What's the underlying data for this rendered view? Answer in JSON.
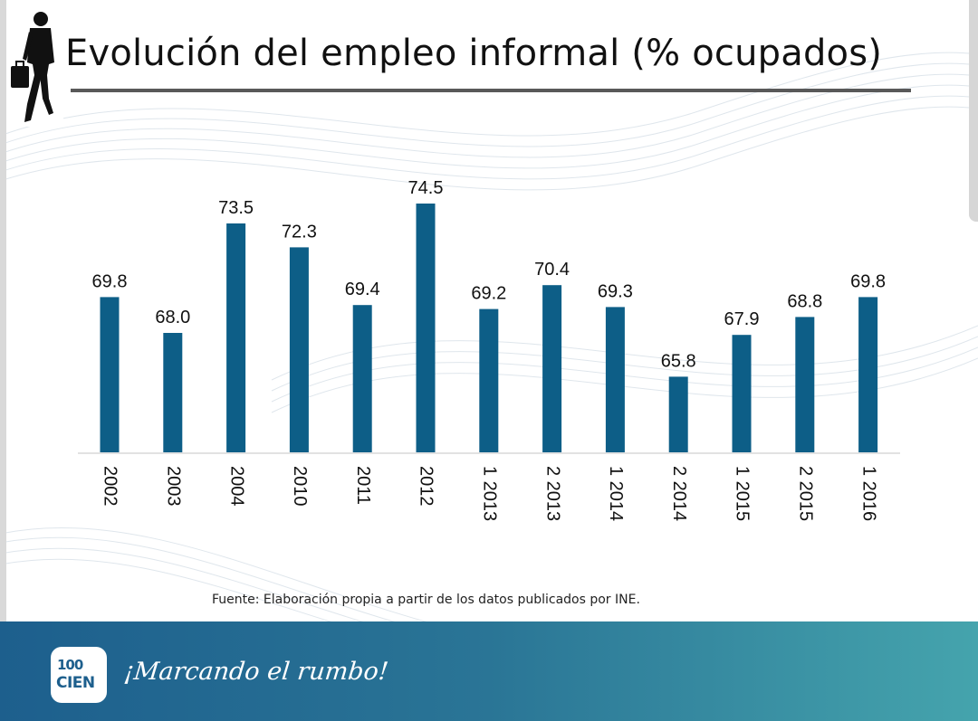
{
  "slide": {
    "title": "Evolución del empleo informal (% ocupados)",
    "source": "Fuente: Elaboración propia a partir de los datos publicados por INE.",
    "figure_icon": "businessman-walking-icon"
  },
  "footer": {
    "logo_top": "100",
    "logo_bottom": "CIEN",
    "slogan": "¡Marcando el rumbo!"
  },
  "colors": {
    "bar": "#0d5e87",
    "footer_left": "#1d5f8d",
    "footer_right": "#45a4ad",
    "rule": "#595959"
  },
  "chart_data": {
    "type": "bar",
    "title": "Evolución del empleo informal (% ocupados)",
    "xlabel": "",
    "ylabel": "",
    "grid": false,
    "categories": [
      "2002",
      "2003",
      "2004",
      "2010",
      "2011",
      "2012",
      "1 2013",
      "2 2013",
      "1 2014",
      "2 2014",
      "1 2015",
      "2 2015",
      "1 2016"
    ],
    "values": [
      69.8,
      68.0,
      73.5,
      72.3,
      69.4,
      74.5,
      69.2,
      70.4,
      69.3,
      65.8,
      67.9,
      68.8,
      69.8
    ],
    "value_labels": [
      "69.8",
      "68.0",
      "73.5",
      "72.3",
      "69.4",
      "74.5",
      "69.2",
      "70.4",
      "69.3",
      "65.8",
      "67.9",
      "68.8",
      "69.8"
    ],
    "ylim": [
      62,
      75
    ]
  }
}
